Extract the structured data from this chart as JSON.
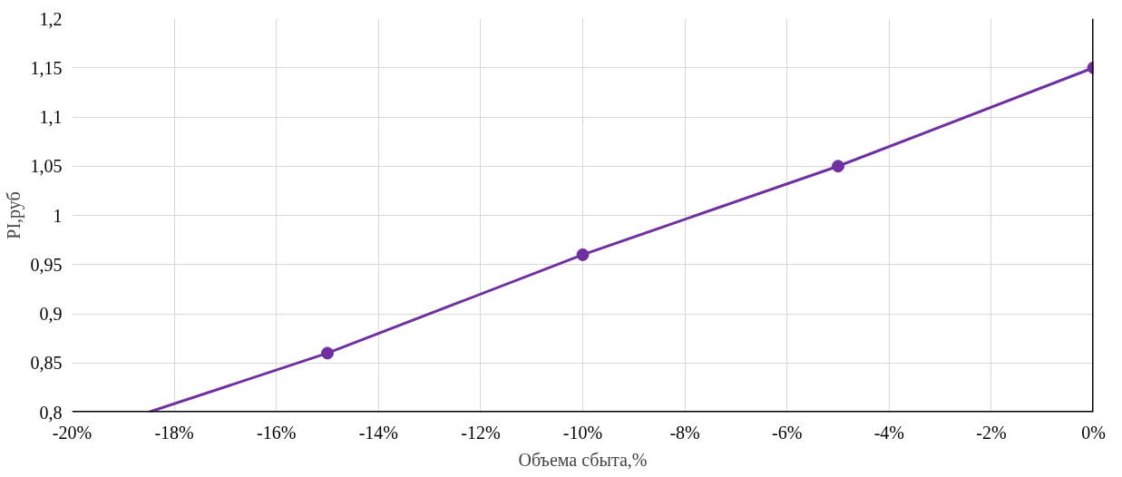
{
  "chart_data": {
    "type": "line",
    "xlabel": "Объема сбыта,%",
    "ylabel": "PI,руб",
    "xlim": [
      -20,
      0
    ],
    "ylim": [
      0.8,
      1.2
    ],
    "xticks": [
      {
        "value": -20,
        "label": "-20%"
      },
      {
        "value": -18,
        "label": "-18%"
      },
      {
        "value": -16,
        "label": "-16%"
      },
      {
        "value": -14,
        "label": "-14%"
      },
      {
        "value": -12,
        "label": "-12%"
      },
      {
        "value": -10,
        "label": "-10%"
      },
      {
        "value": -8,
        "label": "-8%"
      },
      {
        "value": -6,
        "label": "-6%"
      },
      {
        "value": -4,
        "label": "-4%"
      },
      {
        "value": -2,
        "label": "-2%"
      },
      {
        "value": 0,
        "label": "0%"
      }
    ],
    "yticks": [
      {
        "value": 0.8,
        "label": "0,8"
      },
      {
        "value": 0.85,
        "label": "0,85"
      },
      {
        "value": 0.9,
        "label": "0,9"
      },
      {
        "value": 0.95,
        "label": "0,95"
      },
      {
        "value": 1,
        "label": "1"
      },
      {
        "value": 1.05,
        "label": "1,05"
      },
      {
        "value": 1.1,
        "label": "1,1"
      },
      {
        "value": 1.15,
        "label": "1,15"
      },
      {
        "value": 1.2,
        "label": "1,2"
      }
    ],
    "grid": true,
    "series": [
      {
        "color": "#7030a0",
        "x": [
          -18.5,
          -15,
          -10,
          -5,
          0
        ],
        "values": [
          0.8,
          0.86,
          0.96,
          1.05,
          1.15
        ],
        "marker": "none",
        "line_style": "solid"
      },
      {
        "type": "scatter",
        "color": "#7030a0",
        "x": [
          -15,
          -10,
          -5,
          0
        ],
        "values": [
          0.86,
          0.96,
          1.05,
          1.15
        ],
        "marker": "circle"
      }
    ]
  }
}
